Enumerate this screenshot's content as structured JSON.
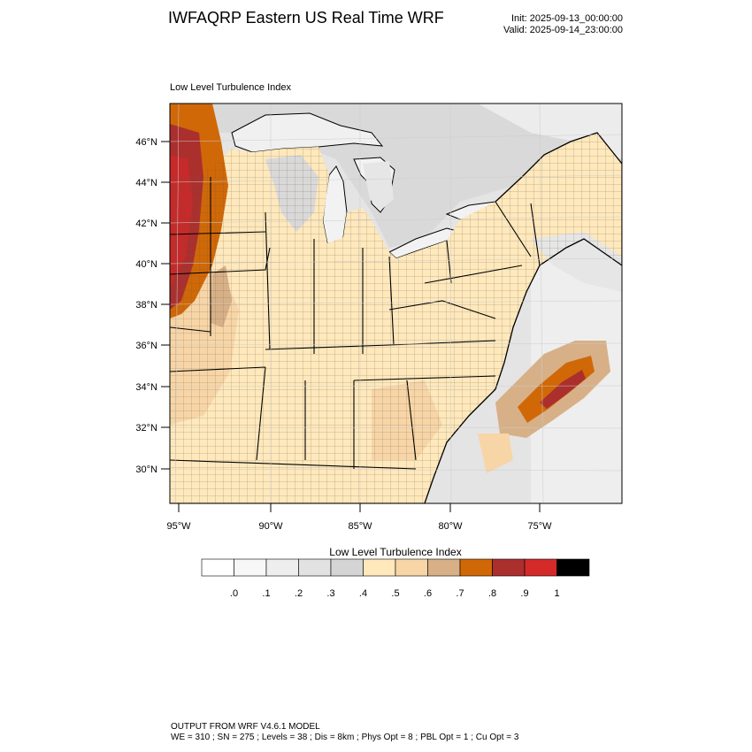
{
  "header": {
    "title": "IWFAQRP Eastern US Real Time WRF",
    "init": "Init: 2025-09-13_00:00:00",
    "valid": "Valid: 2025-09-14_23:00:00"
  },
  "map": {
    "field_label": "Low Level Turbulence Index",
    "lat_labels": [
      "46°N",
      "44°N",
      "42°N",
      "40°N",
      "38°N",
      "36°N",
      "34°N",
      "32°N",
      "30°N"
    ],
    "lon_labels": [
      "95°W",
      "90°W",
      "85°W",
      "80°W",
      "75°W"
    ]
  },
  "colorbar": {
    "title": "Low Level Turbulence Index",
    "colors": [
      "#ffffff",
      "#f7f7f7",
      "#eeeeee",
      "#e2e2e2",
      "#d4d4d4",
      "#fee8bc",
      "#f7d5a6",
      "#d7b088",
      "#d06808",
      "#ab2f2d",
      "#d42a2a",
      "#000000"
    ],
    "tick_labels": [
      ".0",
      ".1",
      ".2",
      ".3",
      ".4",
      ".5",
      ".6",
      ".7",
      ".8",
      ".9",
      "1"
    ]
  },
  "footer": {
    "line1": "OUTPUT FROM WRF V4.6.1 MODEL",
    "line2": "WE = 310 ; SN = 275 ; Levels = 38 ; Dis = 8km ; Phys Opt = 8 ; PBL Opt = 1 ; Cu Opt = 3"
  }
}
